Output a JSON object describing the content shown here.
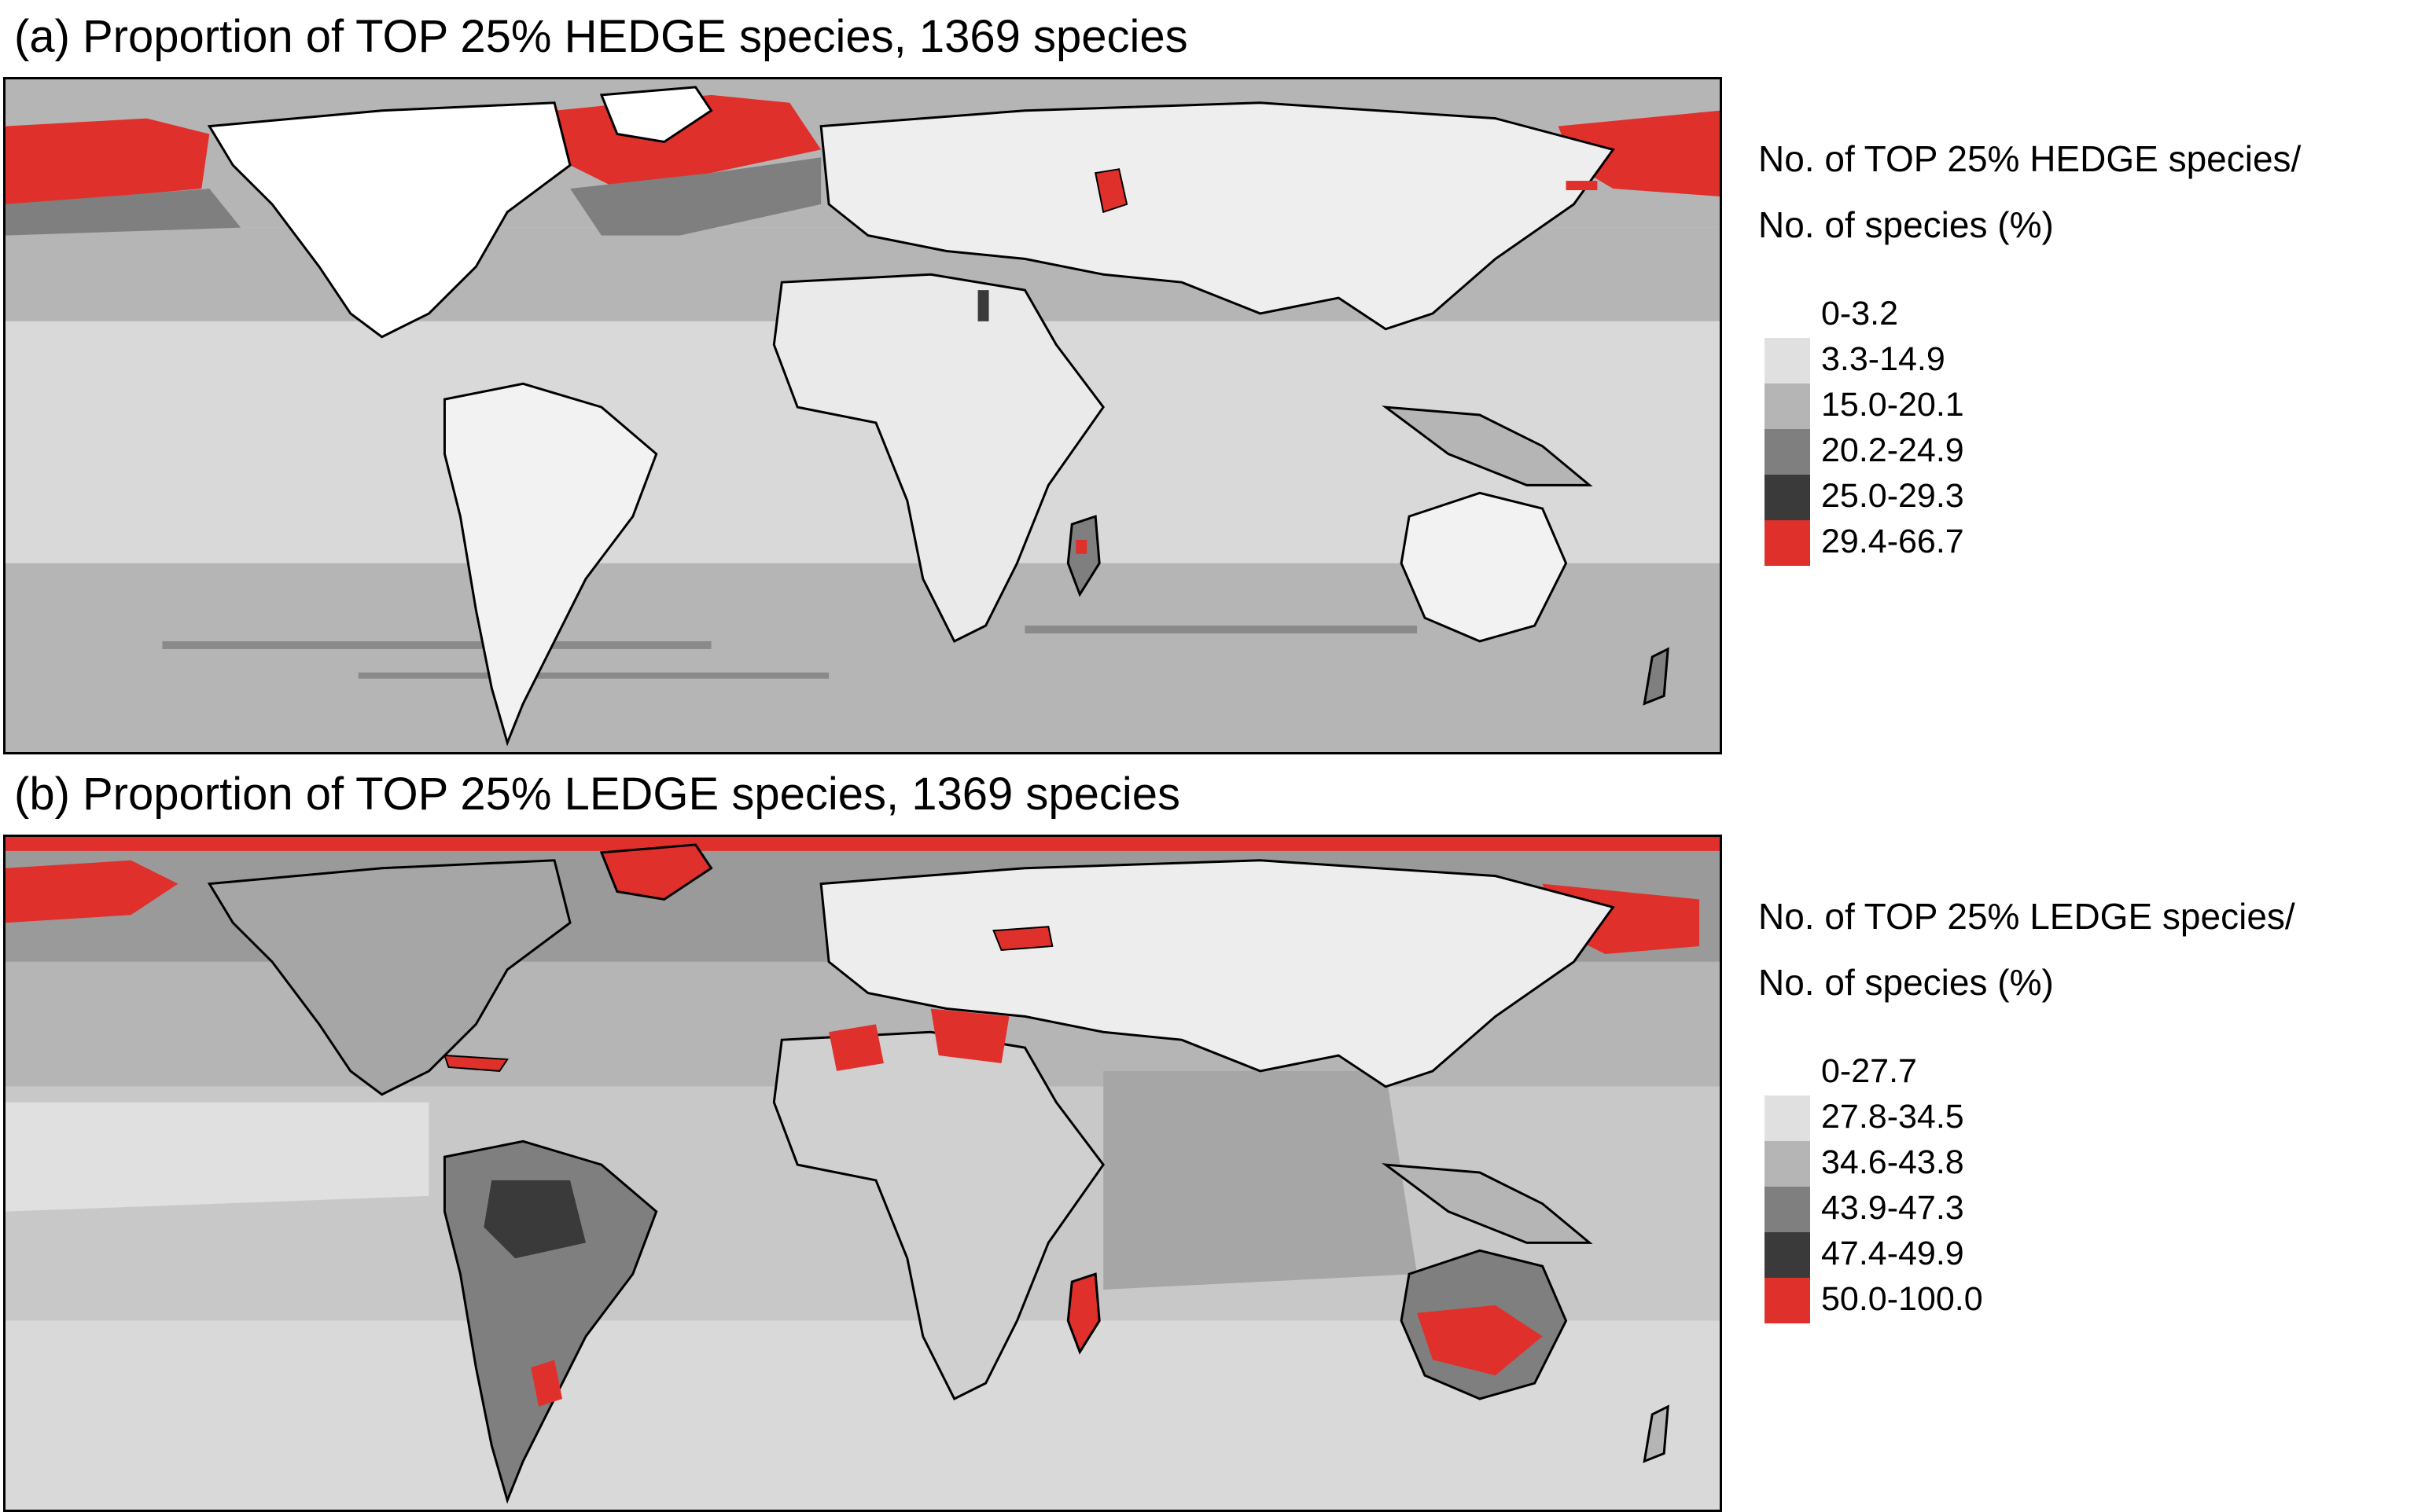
{
  "panels": [
    {
      "title": "(a) Proportion of TOP 25% HEDGE species, 1369 species",
      "legend_title_line1": "No. of TOP 25% HEDGE species/",
      "legend_title_line2": "No. of species (%)",
      "legend_items": [
        {
          "label": "0-3.2",
          "color": "#ffffff"
        },
        {
          "label": "3.3-14.9",
          "color": "#e0e0e0"
        },
        {
          "label": "15.0-20.1",
          "color": "#b5b5b5"
        },
        {
          "label": "20.2-24.9",
          "color": "#7f7f7f"
        },
        {
          "label": "25.0-29.3",
          "color": "#3a3a3a"
        },
        {
          "label": "29.4-66.7",
          "color": "#e0302b"
        }
      ]
    },
    {
      "title": "(b) Proportion of TOP 25% LEDGE species, 1369 species",
      "legend_title_line1": "No. of TOP 25% LEDGE species/",
      "legend_title_line2": "No. of species (%)",
      "legend_items": [
        {
          "label": "0-27.7",
          "color": "#ffffff"
        },
        {
          "label": "27.8-34.5",
          "color": "#e0e0e0"
        },
        {
          "label": "34.6-43.8",
          "color": "#b5b5b5"
        },
        {
          "label": "43.9-47.3",
          "color": "#7f7f7f"
        },
        {
          "label": "47.4-49.9",
          "color": "#3a3a3a"
        },
        {
          "label": "50.0-100.0",
          "color": "#e0302b"
        }
      ]
    }
  ]
}
